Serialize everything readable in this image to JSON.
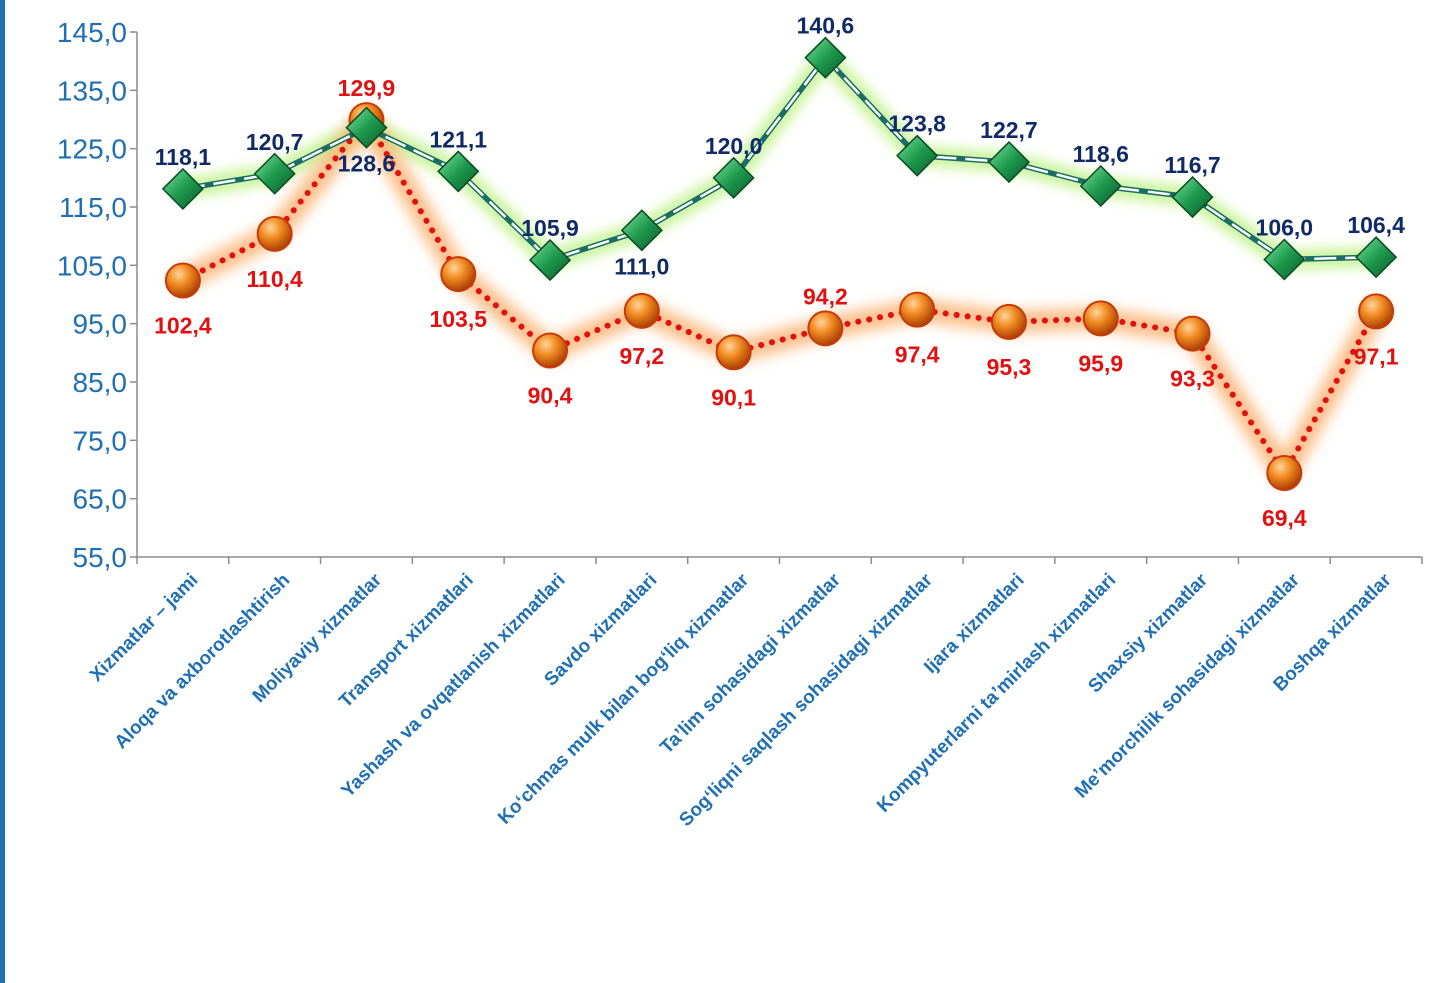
{
  "chart_data": {
    "type": "line",
    "title": "",
    "xlabel": "",
    "ylabel": "",
    "ylim": [
      55,
      145
    ],
    "yticks": [
      "55,0",
      "65,0",
      "75,0",
      "85,0",
      "95,0",
      "105,0",
      "115,0",
      "125,0",
      "135,0",
      "145,0"
    ],
    "grid": false,
    "legend": "none",
    "categories": [
      "Xizmatlar – jami",
      "Aloqa va axborotlashtirish",
      "Moliyaviy xizmatlar",
      "Transport xizmatlari",
      "Yashash va ovqatlanish xizmatlari",
      "Savdo xizmatlari",
      "Ko‘chmas mulk bilan bog‘liq xizmatlar",
      "Ta’lim sohasidagi xizmatlar",
      "Sog‘liqni saqlash sohasidagi xizmatlar",
      "Ijara xizmatlari",
      "Kompyuterlarni ta’mirlash xizmatlari",
      "Shaxsiy xizmatlar",
      "Me’morchilik sohasidagi xizmatlar",
      "Boshqa xizmatlar"
    ],
    "series": [
      {
        "color": "#1e8c4a",
        "label_color": "#0f2a66",
        "marker": "diamond",
        "line_style": "dashed",
        "values": [
          118.1,
          120.7,
          128.6,
          121.1,
          105.9,
          111.0,
          120.0,
          140.6,
          123.8,
          122.7,
          118.6,
          116.7,
          106.0,
          106.4
        ],
        "labels": [
          "118,1",
          "120,7",
          "128,6",
          "121,1",
          "105,9",
          "111,0",
          "120,0",
          "140,6",
          "123,8",
          "122,7",
          "118,6",
          "116,7",
          "106,0",
          "106,4"
        ]
      },
      {
        "color": "#e8620a",
        "label_color": "#e31010",
        "marker": "circle",
        "line_style": "dotted",
        "values": [
          102.4,
          110.4,
          129.9,
          103.5,
          90.4,
          97.2,
          90.1,
          94.2,
          97.4,
          95.3,
          95.9,
          93.3,
          69.4,
          97.1
        ],
        "labels": [
          "102,4",
          "110,4",
          "129,9",
          "103,5",
          "90,4",
          "97,2",
          "90,1",
          "94,2",
          "97,4",
          "95,3",
          "95,9",
          "93,3",
          "69,4",
          "97,1"
        ]
      }
    ]
  }
}
